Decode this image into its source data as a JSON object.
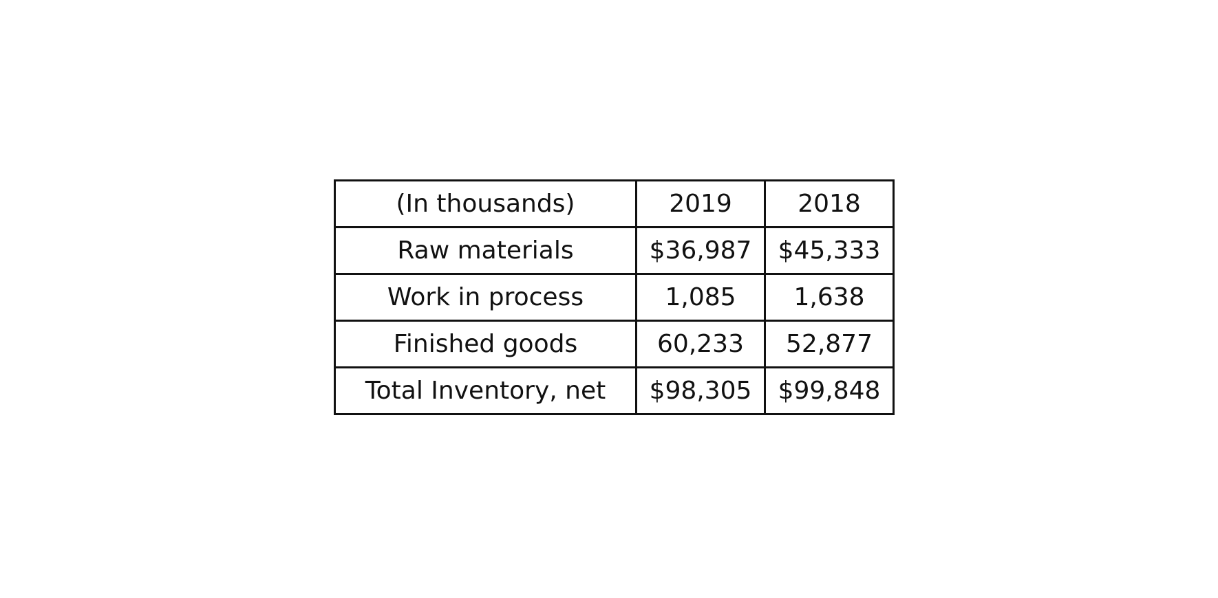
{
  "chart_data": {
    "type": "table",
    "columns": [
      "(In thousands)",
      "2019",
      "2018"
    ],
    "rows": [
      [
        "Raw materials",
        "$36,987",
        "$45,333"
      ],
      [
        "Work in process",
        "1,085",
        "1,638"
      ],
      [
        "Finished goods",
        "60,233",
        "52,877"
      ],
      [
        "Total Inventory, net",
        "$98,305",
        "$99,848"
      ]
    ]
  }
}
